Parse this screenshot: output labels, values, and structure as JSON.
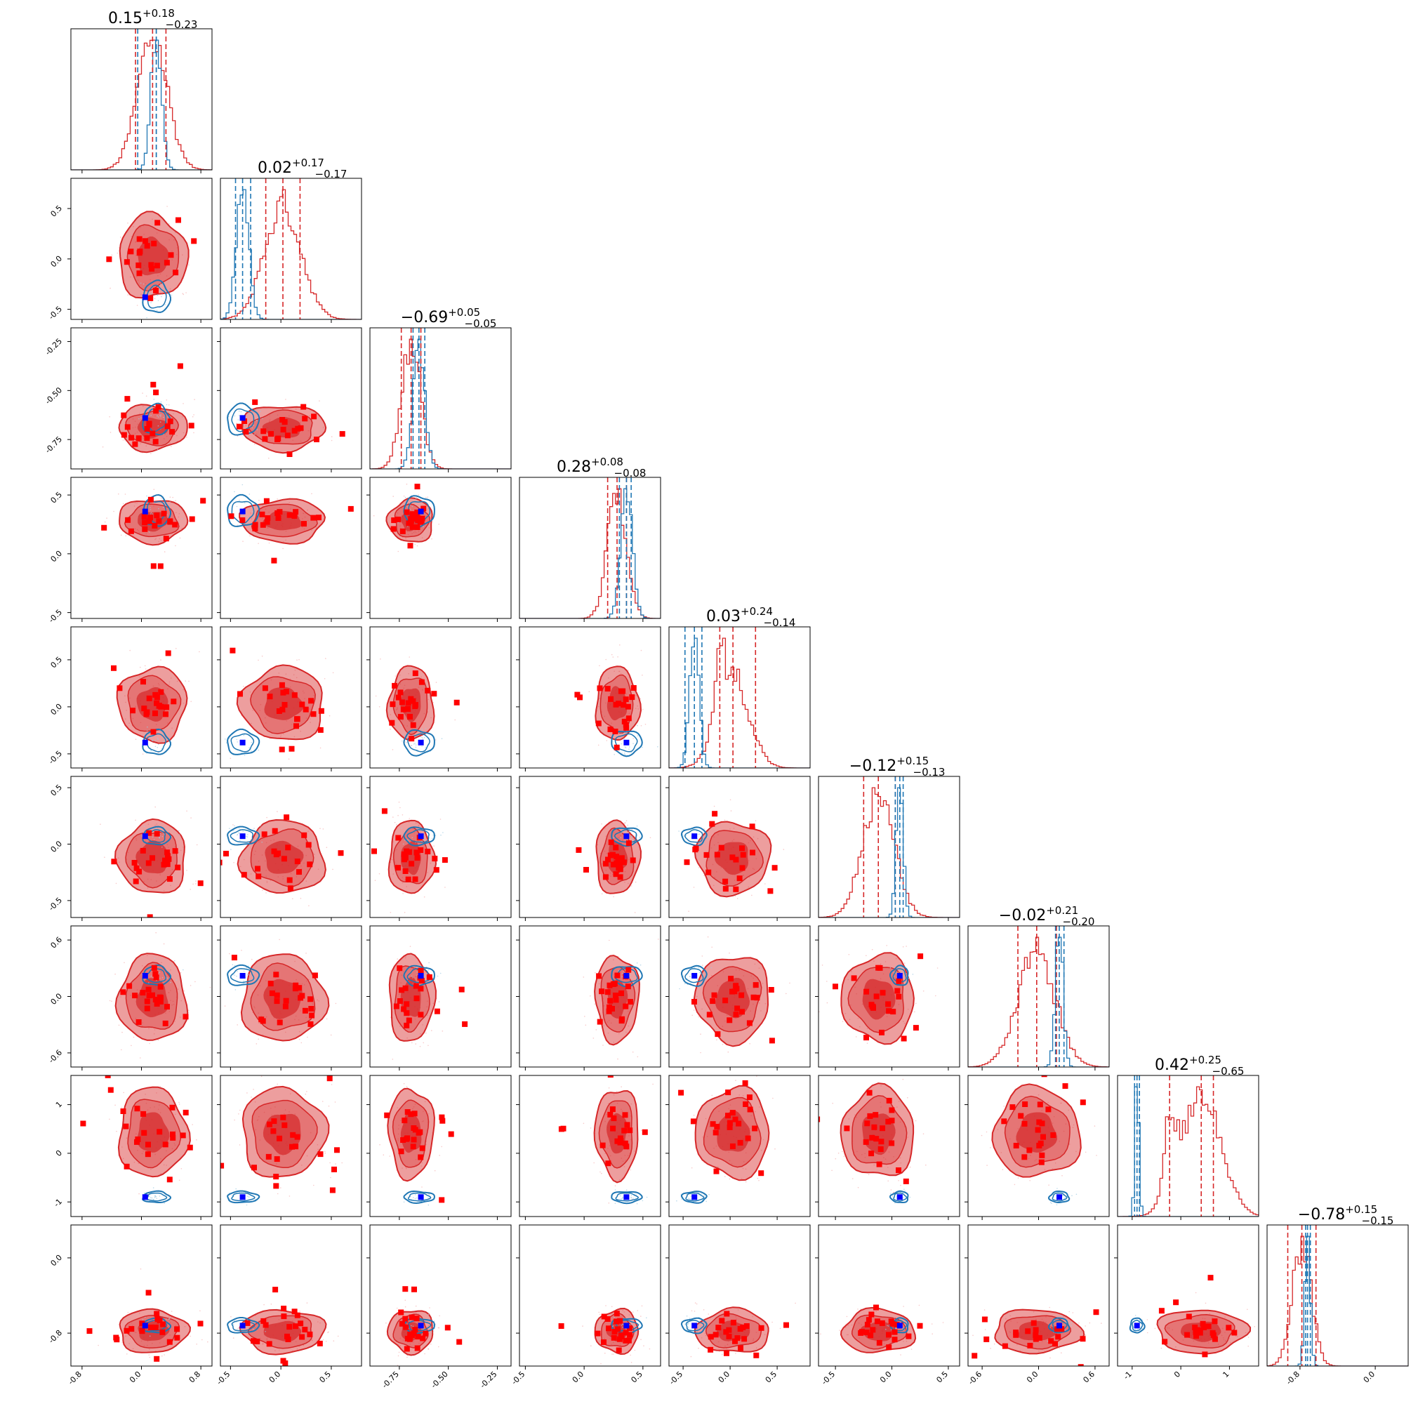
{
  "chart_data": {
    "type": "corner",
    "n_params": 9,
    "colors": {
      "posterior_a": "#d62728",
      "posterior_b": "#1f77b4",
      "marker_a": "#ff0000",
      "marker_b": "#0000ff"
    },
    "axis_ticks": [
      {
        "labels": [
          "-0.8",
          "0.0",
          "0.8"
        ],
        "values": [
          -0.8,
          0.0,
          0.8
        ],
        "range": [
          -0.95,
          0.95
        ]
      },
      {
        "labels": [
          "-0.5",
          "0.0",
          "0.5"
        ],
        "values": [
          -0.5,
          0.0,
          0.5
        ],
        "range": [
          -0.6,
          0.8
        ]
      },
      {
        "labels": [
          "-0.75",
          "-0.50",
          "-0.25"
        ],
        "values": [
          -0.75,
          -0.5,
          -0.25
        ],
        "range": [
          -0.9,
          -0.18
        ]
      },
      {
        "labels": [
          "-0.5",
          "0.0",
          "0.5"
        ],
        "values": [
          -0.5,
          0.0,
          0.5
        ],
        "range": [
          -0.55,
          0.65
        ]
      },
      {
        "labels": [
          "-0.5",
          "0.0",
          "0.5"
        ],
        "values": [
          -0.5,
          0.0,
          0.5
        ],
        "range": [
          -0.65,
          0.85
        ]
      },
      {
        "labels": [
          "-0.5",
          "0.0",
          "0.5"
        ],
        "values": [
          -0.5,
          0.0,
          0.5
        ],
        "range": [
          -0.65,
          0.6
        ]
      },
      {
        "labels": [
          "-0.6",
          "0.0",
          "0.6"
        ],
        "values": [
          -0.6,
          0.0,
          0.6
        ],
        "range": [
          -0.75,
          0.75
        ]
      },
      {
        "labels": [
          "-1",
          "0",
          "1"
        ],
        "values": [
          -1,
          0,
          1
        ],
        "range": [
          -1.3,
          1.6
        ]
      },
      {
        "labels": [
          "-0.8",
          "0.0"
        ],
        "values": [
          -0.8,
          0.0
        ],
        "range": [
          -1.15,
          0.35
        ]
      }
    ],
    "parameters": [
      {
        "title_main": "0.15",
        "title_plus": "+0.18",
        "title_minus": "−0.23",
        "median_a": 0.15,
        "lo_a": -0.08,
        "hi_a": 0.33,
        "sd_a": 0.2,
        "mode_b": 0.2,
        "lo_b": -0.05,
        "mid_b": 0.2,
        "sd_b": 0.07,
        "truth": 0.05
      },
      {
        "title_main": "0.02",
        "title_plus": "+0.17",
        "title_minus": "−0.17",
        "median_a": 0.02,
        "lo_a": -0.15,
        "hi_a": 0.19,
        "sd_a": 0.18,
        "mode_b": -0.38,
        "lo_b": -0.45,
        "mid_b": -0.3,
        "sd_b": 0.06,
        "truth": -0.38
      },
      {
        "title_main": "−0.69",
        "title_plus": "+0.05",
        "title_minus": "−0.05",
        "median_a": -0.69,
        "lo_a": -0.74,
        "hi_a": -0.64,
        "sd_a": 0.05,
        "mode_b": -0.65,
        "lo_b": -0.68,
        "mid_b": -0.62,
        "sd_b": 0.03,
        "truth": -0.64
      },
      {
        "title_main": "0.28",
        "title_plus": "+0.08",
        "title_minus": "−0.08",
        "median_a": 0.28,
        "lo_a": 0.2,
        "hi_a": 0.36,
        "sd_a": 0.08,
        "mode_b": 0.36,
        "lo_b": 0.3,
        "mid_b": 0.4,
        "sd_b": 0.05,
        "truth": 0.36
      },
      {
        "title_main": "0.03",
        "title_plus": "+0.24",
        "title_minus": "−0.14",
        "median_a": 0.03,
        "lo_a": -0.11,
        "hi_a": 0.27,
        "sd_a": 0.17,
        "mode_b": -0.38,
        "lo_b": -0.48,
        "mid_b": -0.3,
        "sd_b": 0.05,
        "truth": -0.38
      },
      {
        "title_main": "−0.12",
        "title_plus": "+0.15",
        "title_minus": "−0.13",
        "median_a": -0.12,
        "lo_a": -0.25,
        "hi_a": 0.03,
        "sd_a": 0.14,
        "mode_b": 0.07,
        "lo_b": 0.03,
        "mid_b": 0.1,
        "sd_b": 0.03,
        "truth": 0.07
      },
      {
        "title_main": "−0.02",
        "title_plus": "+0.21",
        "title_minus": "−0.20",
        "median_a": -0.02,
        "lo_a": -0.22,
        "hi_a": 0.19,
        "sd_a": 0.2,
        "mode_b": 0.22,
        "lo_b": 0.18,
        "mid_b": 0.27,
        "sd_b": 0.04,
        "truth": 0.22
      },
      {
        "title_main": "0.42",
        "title_plus": "+0.25",
        "title_minus": "−0.65",
        "median_a": 0.42,
        "lo_a": -0.23,
        "hi_a": 0.67,
        "sd_a": 0.4,
        "mode_b": -0.9,
        "lo_b": -0.95,
        "mid_b": -0.85,
        "sd_b": 0.04,
        "truth": -0.9
      },
      {
        "title_main": "−0.78",
        "title_plus": "+0.15",
        "title_minus": "−0.15",
        "median_a": -0.78,
        "lo_a": -0.93,
        "hi_a": -0.63,
        "sd_a": 0.1,
        "mode_b": -0.72,
        "lo_b": -0.74,
        "mid_b": -0.69,
        "sd_b": 0.03,
        "truth": -0.72
      }
    ]
  }
}
